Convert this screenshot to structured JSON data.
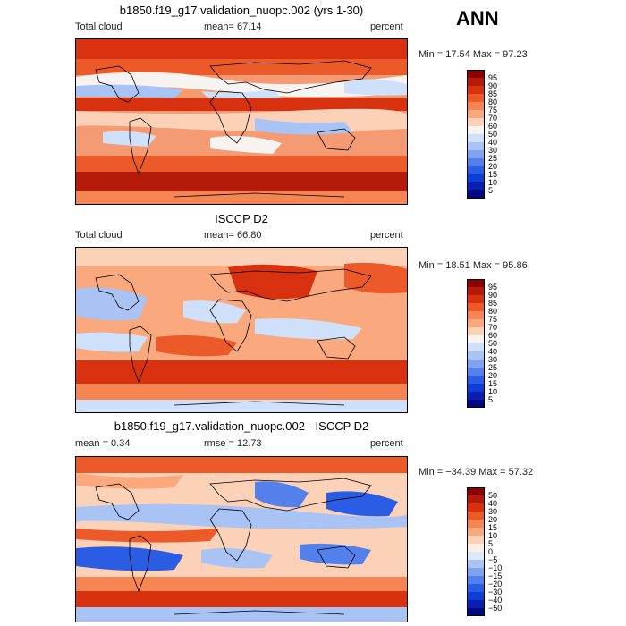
{
  "season": "ANN",
  "panels": [
    {
      "id": "model",
      "title": "b1850.f19_g17.validation_nuopc.002 (yrs 1-30)",
      "left_label": "Total cloud",
      "center_label": "mean=  67.14",
      "right_label": "percent",
      "minmax": "Min =  17.54 Max =  97.23",
      "levels": [
        "95",
        "90",
        "85",
        "80",
        "75",
        "70",
        "60",
        "50",
        "40",
        "30",
        "25",
        "20",
        "15",
        "10",
        "5"
      ],
      "colors": [
        "#8b0000",
        "#b41a0a",
        "#d8310f",
        "#ec5a2a",
        "#f58552",
        "#f9a97d",
        "#fbd2b8",
        "#f7f3f1",
        "#cfe0fa",
        "#a8c3f4",
        "#7fa3ef",
        "#5380ea",
        "#2b5de4",
        "#0f3ed6",
        "#0a1fb0",
        "#000a80"
      ],
      "stats": {
        "mean": 67.14,
        "min": 17.54,
        "max": 97.23,
        "units": "percent"
      }
    },
    {
      "id": "obs",
      "title": "ISCCP D2",
      "left_label": "Total cloud",
      "center_label": "mean=  66.80",
      "right_label": "percent",
      "minmax": "Min =  18.51 Max =  95.86",
      "levels": [
        "95",
        "90",
        "85",
        "80",
        "75",
        "70",
        "60",
        "50",
        "40",
        "30",
        "25",
        "20",
        "15",
        "10",
        "5"
      ],
      "colors": [
        "#8b0000",
        "#b41a0a",
        "#d8310f",
        "#ec5a2a",
        "#f58552",
        "#f9a97d",
        "#fbd2b8",
        "#f7f3f1",
        "#cfe0fa",
        "#a8c3f4",
        "#7fa3ef",
        "#5380ea",
        "#2b5de4",
        "#0f3ed6",
        "#0a1fb0",
        "#000a80"
      ],
      "stats": {
        "mean": 66.8,
        "min": 18.51,
        "max": 95.86,
        "units": "percent"
      }
    },
    {
      "id": "diff",
      "title": "b1850.f19_g17.validation_nuopc.002 - ISCCP D2",
      "left_label": "mean =   0.34",
      "center_label": "rmse =  12.73",
      "right_label": "percent",
      "minmax": "Min = −34.39 Max =  57.32",
      "levels": [
        "50",
        "40",
        "30",
        "20",
        "15",
        "10",
        "5",
        "0",
        "−5",
        "−10",
        "−15",
        "−20",
        "−30",
        "−40",
        "−50"
      ],
      "colors": [
        "#8b0000",
        "#b41a0a",
        "#d8310f",
        "#ec5a2a",
        "#f58552",
        "#f9a97d",
        "#fbd2b8",
        "#fdeee4",
        "#dce8fb",
        "#a8c3f4",
        "#7fa3ef",
        "#5380ea",
        "#2b5de4",
        "#0f3ed6",
        "#0a1fb0",
        "#000a80"
      ],
      "stats": {
        "mean": 0.34,
        "rmse": 12.73,
        "min": -34.39,
        "max": 57.32,
        "units": "percent"
      }
    }
  ],
  "chart_data": {
    "type": "heatmap",
    "title": "ANN",
    "panels": [
      {
        "title": "b1850.f19_g17.validation_nuopc.002 (yrs 1-30)",
        "variable": "Total cloud",
        "units": "percent",
        "mean": 67.14,
        "min": 17.54,
        "max": 97.23,
        "contour_levels": [
          5,
          10,
          15,
          20,
          25,
          30,
          40,
          50,
          60,
          70,
          75,
          80,
          85,
          90,
          95
        ]
      },
      {
        "title": "ISCCP D2",
        "variable": "Total cloud",
        "units": "percent",
        "mean": 66.8,
        "min": 18.51,
        "max": 95.86,
        "contour_levels": [
          5,
          10,
          15,
          20,
          25,
          30,
          40,
          50,
          60,
          70,
          75,
          80,
          85,
          90,
          95
        ]
      },
      {
        "title": "b1850.f19_g17.validation_nuopc.002 - ISCCP D2",
        "units": "percent",
        "mean": 0.34,
        "rmse": 12.73,
        "min": -34.39,
        "max": 57.32,
        "contour_levels": [
          -50,
          -40,
          -30,
          -20,
          -15,
          -10,
          -5,
          0,
          5,
          10,
          15,
          20,
          30,
          40,
          50
        ]
      }
    ]
  }
}
